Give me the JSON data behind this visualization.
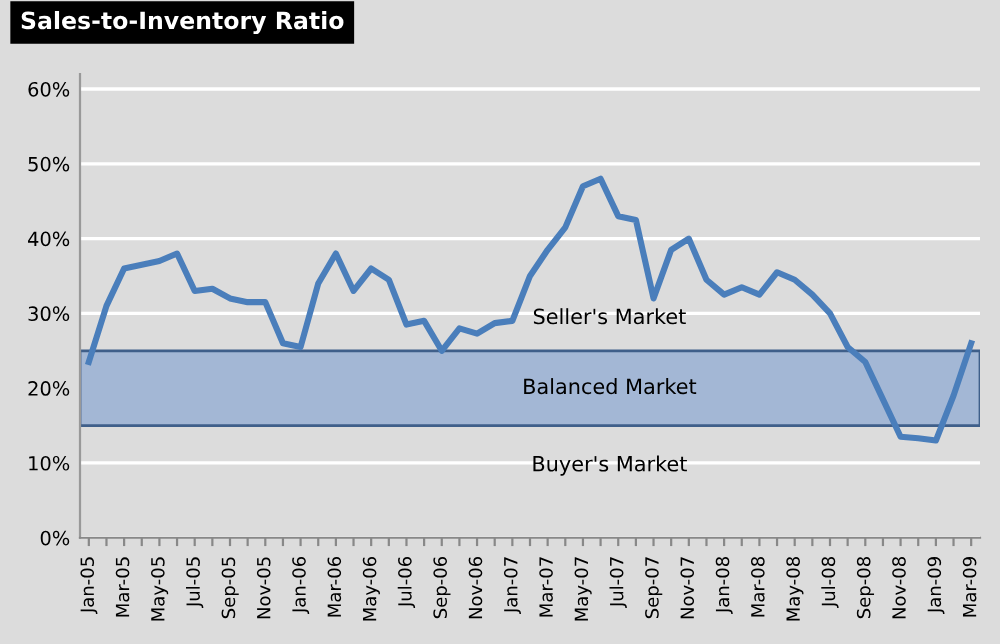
{
  "chart_data": {
    "type": "line",
    "title": "Sales-to-Inventory Ratio",
    "categories": [
      "Jan-05",
      null,
      "Mar-05",
      null,
      "May-05",
      null,
      "Jul-05",
      null,
      "Sep-05",
      null,
      "Nov-05",
      null,
      "Jan-06",
      null,
      "Mar-06",
      null,
      "May-06",
      null,
      "Jul-06",
      null,
      "Sep-06",
      null,
      "Nov-06",
      null,
      "Jan-07",
      null,
      "Mar-07",
      null,
      "May-07",
      null,
      "Jul-07",
      null,
      "Sep-07",
      null,
      "Nov-07",
      null,
      "Jan-08",
      null,
      "Mar-08",
      null,
      "May-08",
      null,
      "Jul-08",
      null,
      "Sep-08",
      null,
      "Nov-08",
      null,
      "Jan-09",
      null,
      "Mar-09"
    ],
    "series": [
      {
        "color": "#4a7ebb",
        "values": [
          23.5,
          31,
          36,
          36.5,
          37,
          38,
          33,
          33.3,
          32,
          31.5,
          31.5,
          26,
          25.5,
          34,
          38,
          33,
          36,
          34.5,
          28.5,
          29,
          25,
          28,
          27.3,
          28.7,
          29,
          35,
          38.5,
          41.5,
          47,
          48,
          43,
          42.5,
          32,
          38.5,
          40,
          34.5,
          32.5,
          33.5,
          32.5,
          35.5,
          34.5,
          32.5,
          30,
          25.5,
          23.5,
          18.5,
          13.5,
          13.3,
          13,
          19,
          26
        ]
      }
    ],
    "ylim": [
      0,
      62
    ],
    "yticks": [
      {
        "value": 0,
        "label": "0%"
      },
      {
        "value": 10,
        "label": "10%"
      },
      {
        "value": 20,
        "label": "20%"
      },
      {
        "value": 30,
        "label": "30%"
      },
      {
        "value": 40,
        "label": "40%"
      },
      {
        "value": 50,
        "label": "50%"
      },
      {
        "value": 60,
        "label": "60%"
      }
    ],
    "grid": "y",
    "marker": "none",
    "line_style": "solid",
    "legend": false,
    "bands": [
      {
        "axis": "y",
        "from": 15,
        "to": 25,
        "label": "Balanced Market",
        "color": "#a3b7d5"
      }
    ],
    "annotations": [
      "Seller's Market",
      "Buyer's Market"
    ]
  }
}
